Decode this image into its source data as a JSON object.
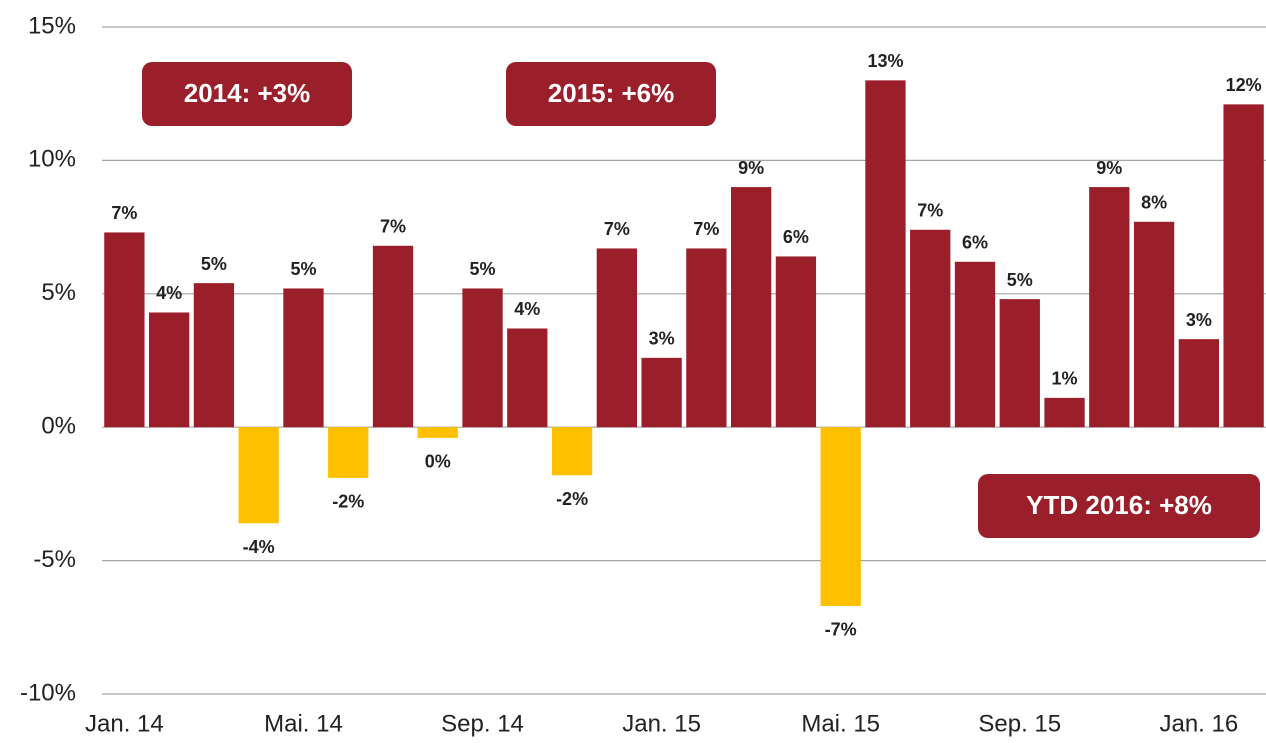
{
  "chart_data": {
    "type": "bar",
    "categories": [
      "Jan. 14",
      null,
      null,
      null,
      "Mai. 14",
      null,
      null,
      null,
      "Sep. 14",
      null,
      null,
      null,
      "Jan. 15",
      null,
      null,
      null,
      "Mai. 15",
      null,
      null,
      null,
      "Sep. 15",
      null,
      null,
      null,
      "Jan. 16",
      null
    ],
    "values": [
      7.3,
      4.3,
      5.4,
      -3.6,
      5.2,
      -1.9,
      6.8,
      -0.4,
      5.2,
      3.7,
      -1.8,
      6.7,
      2.6,
      6.7,
      9.0,
      6.4,
      -6.7,
      13.0,
      7.4,
      6.2,
      4.8,
      1.1,
      9.0,
      7.7,
      3.3,
      12.1
    ],
    "value_labels": [
      "7%",
      "4%",
      "5%",
      "-4%",
      "5%",
      "-2%",
      "7%",
      "0%",
      "5%",
      "4%",
      "-2%",
      "7%",
      "3%",
      "7%",
      "9%",
      "6%",
      "-7%",
      "13%",
      "7%",
      "6%",
      "5%",
      "1%",
      "9%",
      "8%",
      "3%",
      "12%"
    ],
    "color": "#9b1f2b",
    "negative_color": "#ffc000",
    "ylim": [
      -10,
      15
    ],
    "yticks": [
      {
        "value": -10,
        "label": "-10%"
      },
      {
        "value": -5,
        "label": "-5%"
      },
      {
        "value": 0,
        "label": "0%"
      },
      {
        "value": 5,
        "label": "5%"
      },
      {
        "value": 10,
        "label": "10%"
      },
      {
        "value": 15,
        "label": "15%"
      }
    ],
    "grid": true,
    "annotations": [
      "2014: +3%",
      "2015: +6%",
      "YTD 2016: +8%"
    ]
  }
}
